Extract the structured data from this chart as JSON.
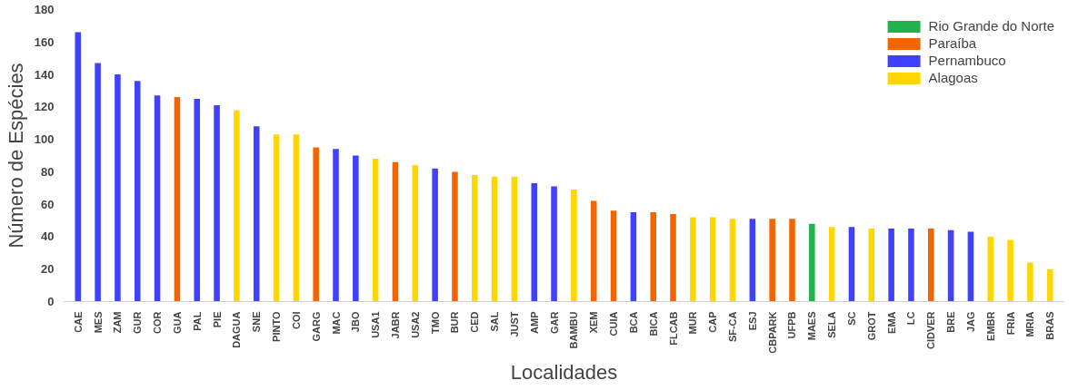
{
  "chart_data": {
    "type": "bar",
    "xlabel": "Localidades",
    "ylabel": "Número de Espécies",
    "categories": [
      "CAE",
      "MES",
      "ZAM",
      "GUR",
      "COR",
      "GUA",
      "PAL",
      "PIE",
      "DAGUA",
      "SNE",
      "PINTO",
      "COI",
      "GARG",
      "MAC",
      "JBO",
      "USA1",
      "JABR",
      "USA2",
      "TMO",
      "BUR",
      "CED",
      "SAL",
      "JUST",
      "AMP",
      "GAR",
      "BAMBU",
      "XEM",
      "CUIA",
      "BCA",
      "BICA",
      "FLCAB",
      "MUR",
      "CAP",
      "SF-CA",
      "ESJ",
      "CBPARK",
      "UFPB",
      "MAES",
      "SELA",
      "SC",
      "GROT",
      "EMA",
      "LC",
      "CIDVER",
      "BRE",
      "JAG",
      "EMBR",
      "FRIA",
      "MRIA",
      "BRAS"
    ],
    "series": [
      {
        "name": "Rio Grande do Norte",
        "color": "#22b14c",
        "values": [
          null,
          null,
          null,
          null,
          null,
          null,
          null,
          null,
          null,
          null,
          null,
          null,
          null,
          null,
          null,
          null,
          null,
          null,
          null,
          null,
          null,
          null,
          null,
          null,
          null,
          null,
          null,
          null,
          null,
          null,
          null,
          null,
          null,
          null,
          null,
          null,
          null,
          48,
          null,
          null,
          null,
          null,
          null,
          null,
          null,
          null,
          null,
          null,
          null,
          null
        ]
      },
      {
        "name": "Paraíba",
        "color": "#f26500",
        "values": [
          null,
          null,
          null,
          null,
          null,
          126,
          null,
          null,
          null,
          null,
          null,
          null,
          95,
          null,
          null,
          null,
          86,
          null,
          null,
          80,
          null,
          null,
          null,
          null,
          null,
          null,
          62,
          56,
          null,
          55,
          54,
          null,
          null,
          null,
          null,
          51,
          51,
          null,
          null,
          null,
          null,
          null,
          null,
          45,
          null,
          null,
          null,
          null,
          null,
          null
        ]
      },
      {
        "name": "Pernambuco",
        "color": "#4040ff",
        "values": [
          166,
          147,
          140,
          136,
          127,
          null,
          125,
          121,
          null,
          108,
          null,
          null,
          null,
          94,
          90,
          null,
          null,
          null,
          82,
          null,
          null,
          null,
          null,
          73,
          71,
          null,
          null,
          null,
          55,
          null,
          null,
          null,
          null,
          null,
          51,
          null,
          null,
          null,
          null,
          46,
          null,
          45,
          45,
          null,
          44,
          43,
          null,
          null,
          null,
          null
        ]
      },
      {
        "name": "Alagoas",
        "color": "#ffd700",
        "values": [
          null,
          null,
          null,
          null,
          null,
          null,
          null,
          null,
          118,
          null,
          103,
          103,
          null,
          null,
          null,
          88,
          null,
          84,
          null,
          null,
          78,
          77,
          77,
          null,
          null,
          69,
          null,
          null,
          null,
          null,
          null,
          52,
          52,
          51,
          null,
          null,
          null,
          null,
          46,
          null,
          45,
          null,
          null,
          null,
          null,
          null,
          40,
          38,
          24,
          20
        ]
      }
    ],
    "ylim": [
      0,
      180
    ],
    "yticks": [
      0,
      20,
      40,
      60,
      80,
      100,
      120,
      140,
      160,
      180
    ],
    "grid": false,
    "legend": "top right"
  }
}
